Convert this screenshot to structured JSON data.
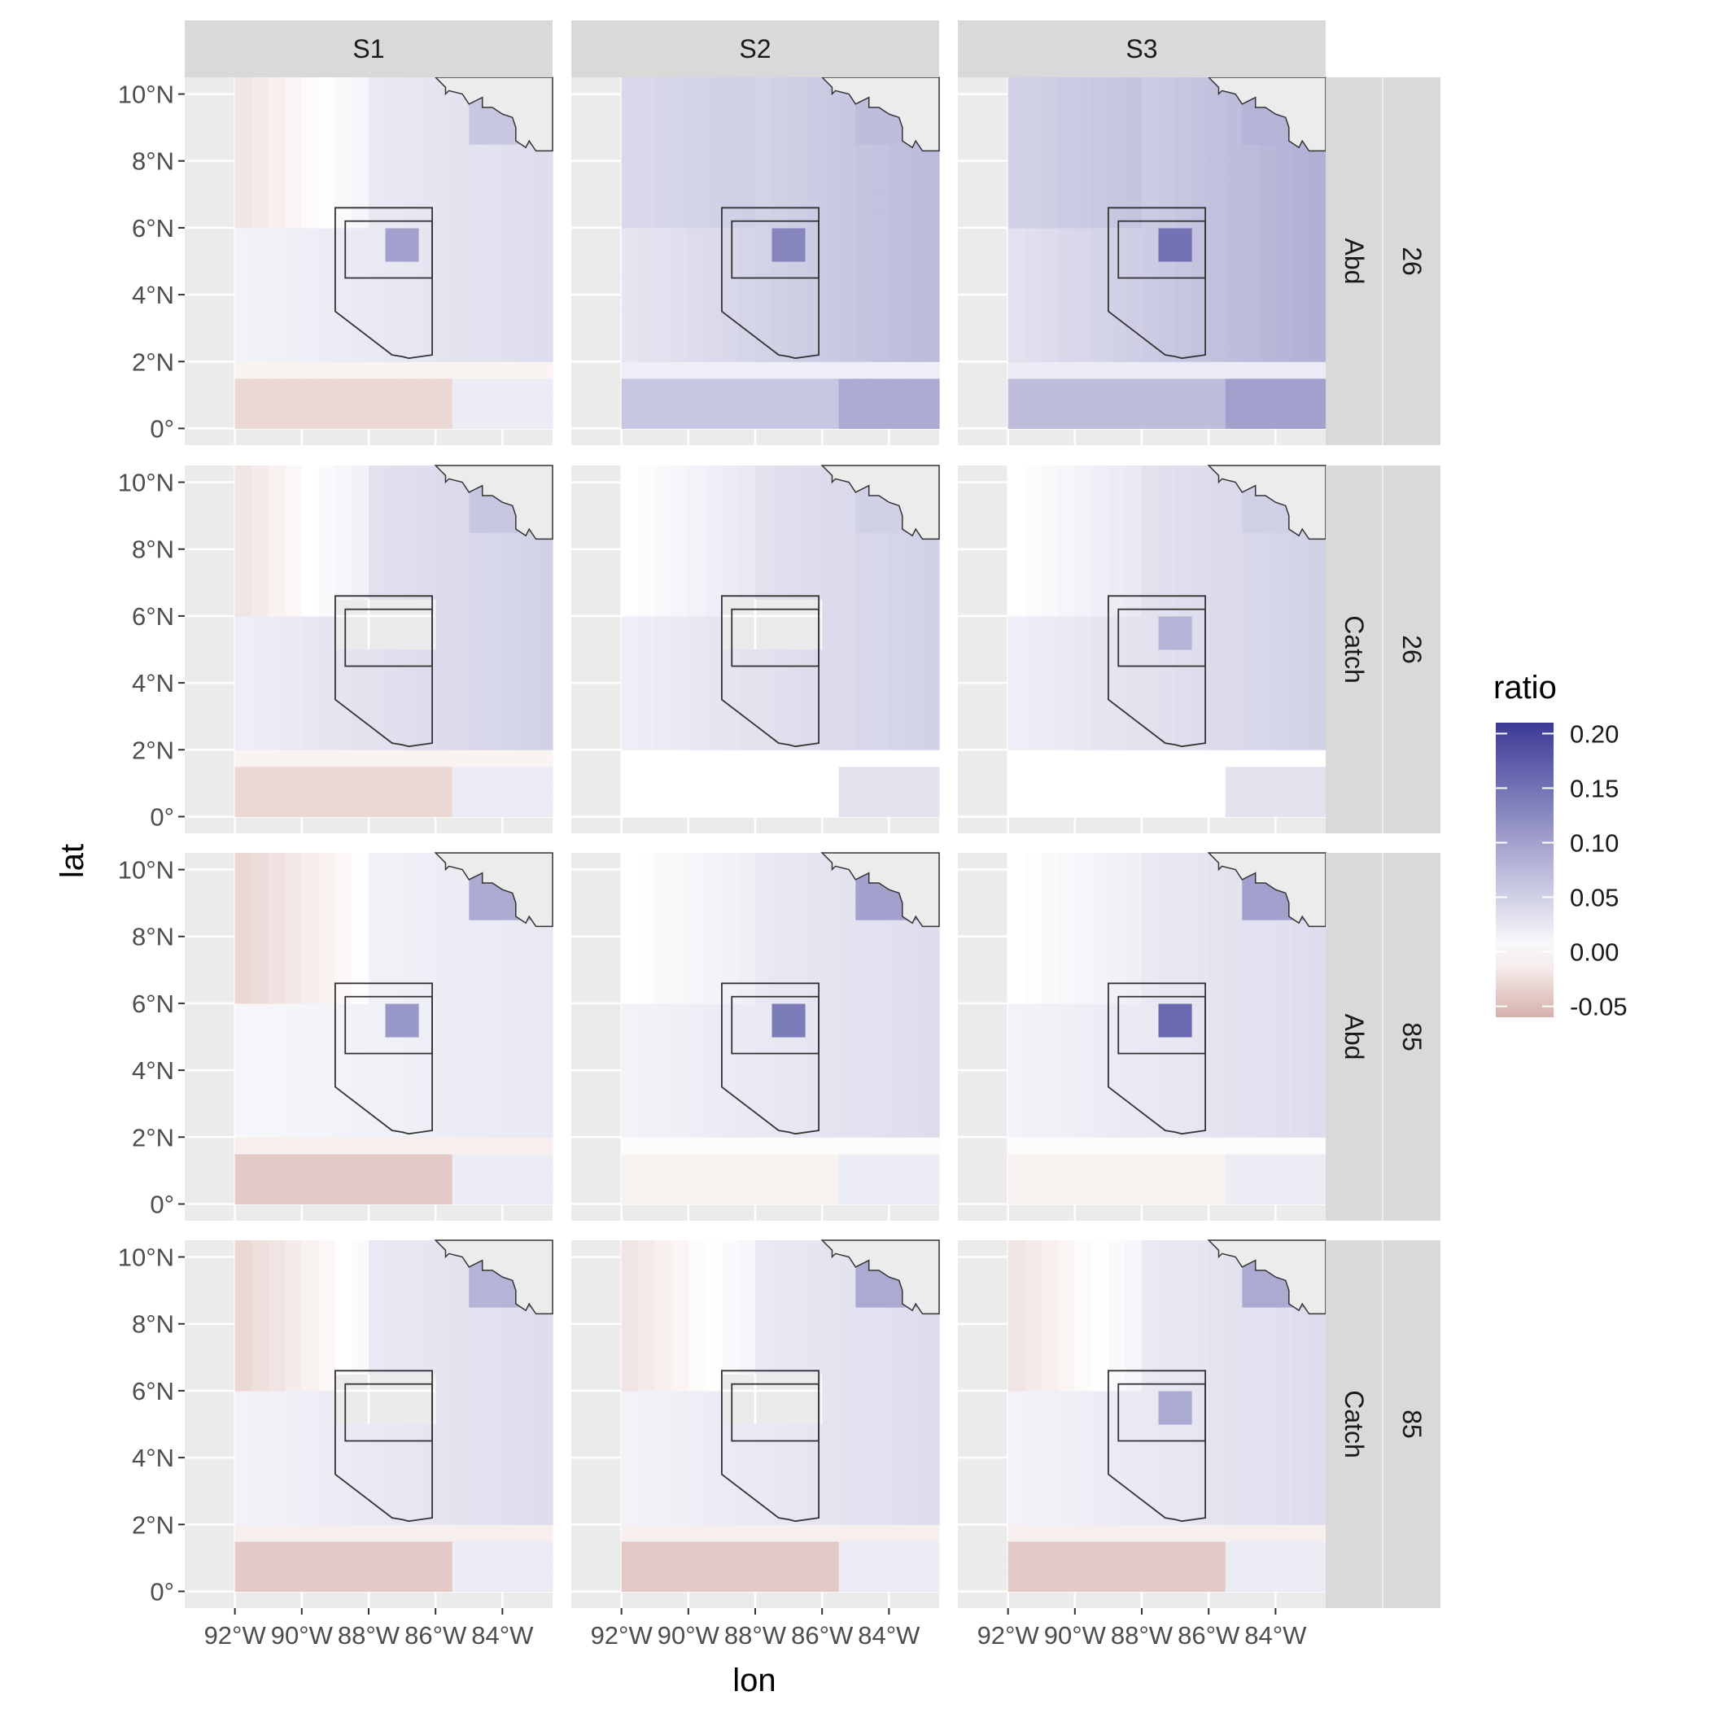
{
  "chart_data": {
    "type": "heatmap",
    "title": "",
    "xlabel": "lon",
    "ylabel": "lat",
    "x_tick_labels": [
      "92°W",
      "90°W",
      "88°W",
      "86°W",
      "84°W"
    ],
    "x_tick_values": [
      -92,
      -90,
      -88,
      -86,
      -84
    ],
    "y_tick_labels": [
      "0°",
      "2°N",
      "4°N",
      "6°N",
      "8°N",
      "10°N"
    ],
    "y_tick_values": [
      0,
      2,
      4,
      6,
      8,
      10
    ],
    "xlim": [
      -93.5,
      -82.5
    ],
    "ylim": [
      -0.5,
      10.5
    ],
    "grid_lon": [
      -92,
      -83
    ],
    "grid_lat": [
      0,
      10
    ],
    "grid_step": 0.5,
    "column_facets": [
      "S1",
      "S2",
      "S3"
    ],
    "row_facets": [
      {
        "variable": "Abd",
        "group": "26"
      },
      {
        "variable": "Catch",
        "group": "26"
      },
      {
        "variable": "Abd",
        "group": "85"
      },
      {
        "variable": "Catch",
        "group": "85"
      }
    ],
    "legend": {
      "title": "ratio",
      "position": "right",
      "range": [
        -0.06,
        0.21
      ],
      "breaks": [
        0.2,
        0.15,
        0.1,
        0.05,
        0.0,
        -0.05
      ],
      "break_labels": [
        "0.20",
        "0.15",
        "0.10",
        "0.05",
        "0.00",
        "-0.05"
      ],
      "low_color": "#d6b0aa",
      "mid_color": "#ffffff",
      "high_color": "#3b3a96"
    },
    "closed_area_outline": {
      "lon": [
        -88.8,
        -86.1,
        -86.1,
        -86.8,
        -87.0,
        -87.3,
        -89.0,
        -89.0,
        -88.8,
        -88.8
      ],
      "lat": [
        6.6,
        6.6,
        2.2,
        2.1,
        2.15,
        2.2,
        3.5,
        6.6,
        6.6,
        6.6
      ]
    },
    "inner_box": {
      "lon": [
        -88.7,
        -86.1
      ],
      "lat": [
        4.5,
        6.2
      ]
    },
    "land_color": "#ececec",
    "hot_cell": {
      "lon": [
        -87.5,
        -86.5
      ],
      "lat": [
        5.0,
        6.0
      ]
    },
    "panels": [
      {
        "row": 0,
        "col": 0,
        "base": 0.03,
        "hot": 0.1,
        "south": -0.03,
        "nw": -0.02,
        "ne": 0.06,
        "blank_box": false
      },
      {
        "row": 0,
        "col": 1,
        "base": 0.06,
        "hot": 0.13,
        "south": 0.06,
        "nw": 0.04,
        "ne": 0.07,
        "blank_box": false
      },
      {
        "row": 0,
        "col": 2,
        "base": 0.07,
        "hot": 0.15,
        "south": 0.07,
        "nw": 0.05,
        "ne": 0.08,
        "blank_box": false
      },
      {
        "row": 1,
        "col": 0,
        "base": 0.04,
        "hot": null,
        "south": -0.03,
        "nw": -0.02,
        "ne": 0.06,
        "blank_box": true
      },
      {
        "row": 1,
        "col": 1,
        "base": 0.04,
        "hot": null,
        "south": 0.0,
        "nw": 0.0,
        "ne": 0.05,
        "blank_box": true
      },
      {
        "row": 1,
        "col": 2,
        "base": 0.04,
        "hot": 0.08,
        "south": 0.0,
        "nw": 0.0,
        "ne": 0.05,
        "blank_box": false
      },
      {
        "row": 2,
        "col": 0,
        "base": 0.02,
        "hot": 0.11,
        "south": -0.04,
        "nw": -0.03,
        "ne": 0.09,
        "blank_box": false
      },
      {
        "row": 2,
        "col": 1,
        "base": 0.03,
        "hot": 0.14,
        "south": -0.01,
        "nw": 0.0,
        "ne": 0.1,
        "blank_box": false
      },
      {
        "row": 2,
        "col": 2,
        "base": 0.03,
        "hot": 0.16,
        "south": -0.01,
        "nw": 0.0,
        "ne": 0.1,
        "blank_box": false
      },
      {
        "row": 3,
        "col": 0,
        "base": 0.03,
        "hot": null,
        "south": -0.04,
        "nw": -0.03,
        "ne": 0.08,
        "blank_box": true
      },
      {
        "row": 3,
        "col": 1,
        "base": 0.03,
        "hot": null,
        "south": -0.04,
        "nw": -0.02,
        "ne": 0.09,
        "blank_box": true
      },
      {
        "row": 3,
        "col": 2,
        "base": 0.03,
        "hot": 0.09,
        "south": -0.04,
        "nw": -0.02,
        "ne": 0.09,
        "blank_box": false
      }
    ]
  }
}
